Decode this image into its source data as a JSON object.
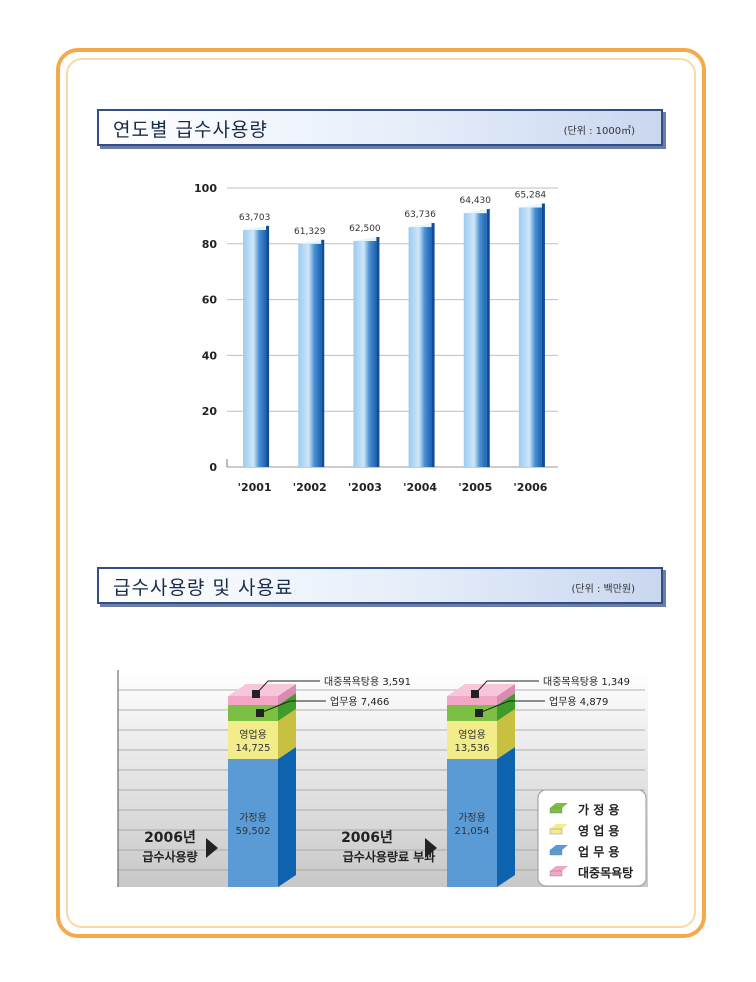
{
  "section1": {
    "title": "연도별 급수사용량",
    "unit": "(단위 : 1000㎥)"
  },
  "section2": {
    "title": "급수사용량 및 사용료",
    "unit": "(단위 : 백만원)"
  },
  "chart_data": [
    {
      "type": "bar",
      "categories": [
        "'2001",
        "'2002",
        "'2003",
        "'2004",
        "'2005",
        "'2006"
      ],
      "values": [
        63703,
        61329,
        62500,
        63736,
        64430,
        65284
      ],
      "value_labels": [
        "63,703",
        "61,329",
        "62,500",
        "63,736",
        "64,430",
        "65,284"
      ],
      "yticks": [
        0,
        20,
        40,
        60,
        80,
        100
      ],
      "bar_heights_axis_units": [
        85,
        80,
        81,
        86,
        91,
        93
      ],
      "ylim": [
        0,
        100
      ],
      "grid": true,
      "colors": {
        "bar_light": "#9ccbf0",
        "bar_mid": "#4a90d2",
        "bar_dark": "#1a62b5",
        "grid": "#bfbfbf"
      }
    },
    {
      "type": "bar",
      "stacked": true,
      "categories": [
        "2006년 급수사용량",
        "2006년 급수사용량료 부과"
      ],
      "category_lines": [
        [
          "2006년",
          "급수사용량"
        ],
        [
          "2006년",
          "급수사용량료 부과"
        ]
      ],
      "series": [
        {
          "name": "가 정 용",
          "short": "가정용",
          "values": [
            59502,
            21054
          ],
          "labels": [
            "59,502",
            "21,054"
          ],
          "color": "#5b9bd5"
        },
        {
          "name": "영 업 용",
          "short": "영업용",
          "values": [
            14725,
            13536
          ],
          "labels": [
            "14,725",
            "13,536"
          ],
          "color": "#f2ec8a"
        },
        {
          "name": "업 무 용",
          "short": "업무용",
          "values": [
            7466,
            4879
          ],
          "labels": [
            "7,466",
            "4,879"
          ],
          "color": "#7bc043"
        },
        {
          "name": "대중목욕탕",
          "short": "대중목욕탕용",
          "values": [
            3591,
            1349
          ],
          "labels": [
            "3,591",
            "1,349"
          ],
          "color": "#f2a6c6"
        }
      ],
      "legend": {
        "items": [
          "가 정 용",
          "영 업 용",
          "업 무 용",
          "대중목욕탕"
        ],
        "colors": [
          "#7bc043",
          "#f2ec8a",
          "#5b9bd5",
          "#f2a6c6"
        ],
        "placement": "bottom-right"
      }
    }
  ]
}
